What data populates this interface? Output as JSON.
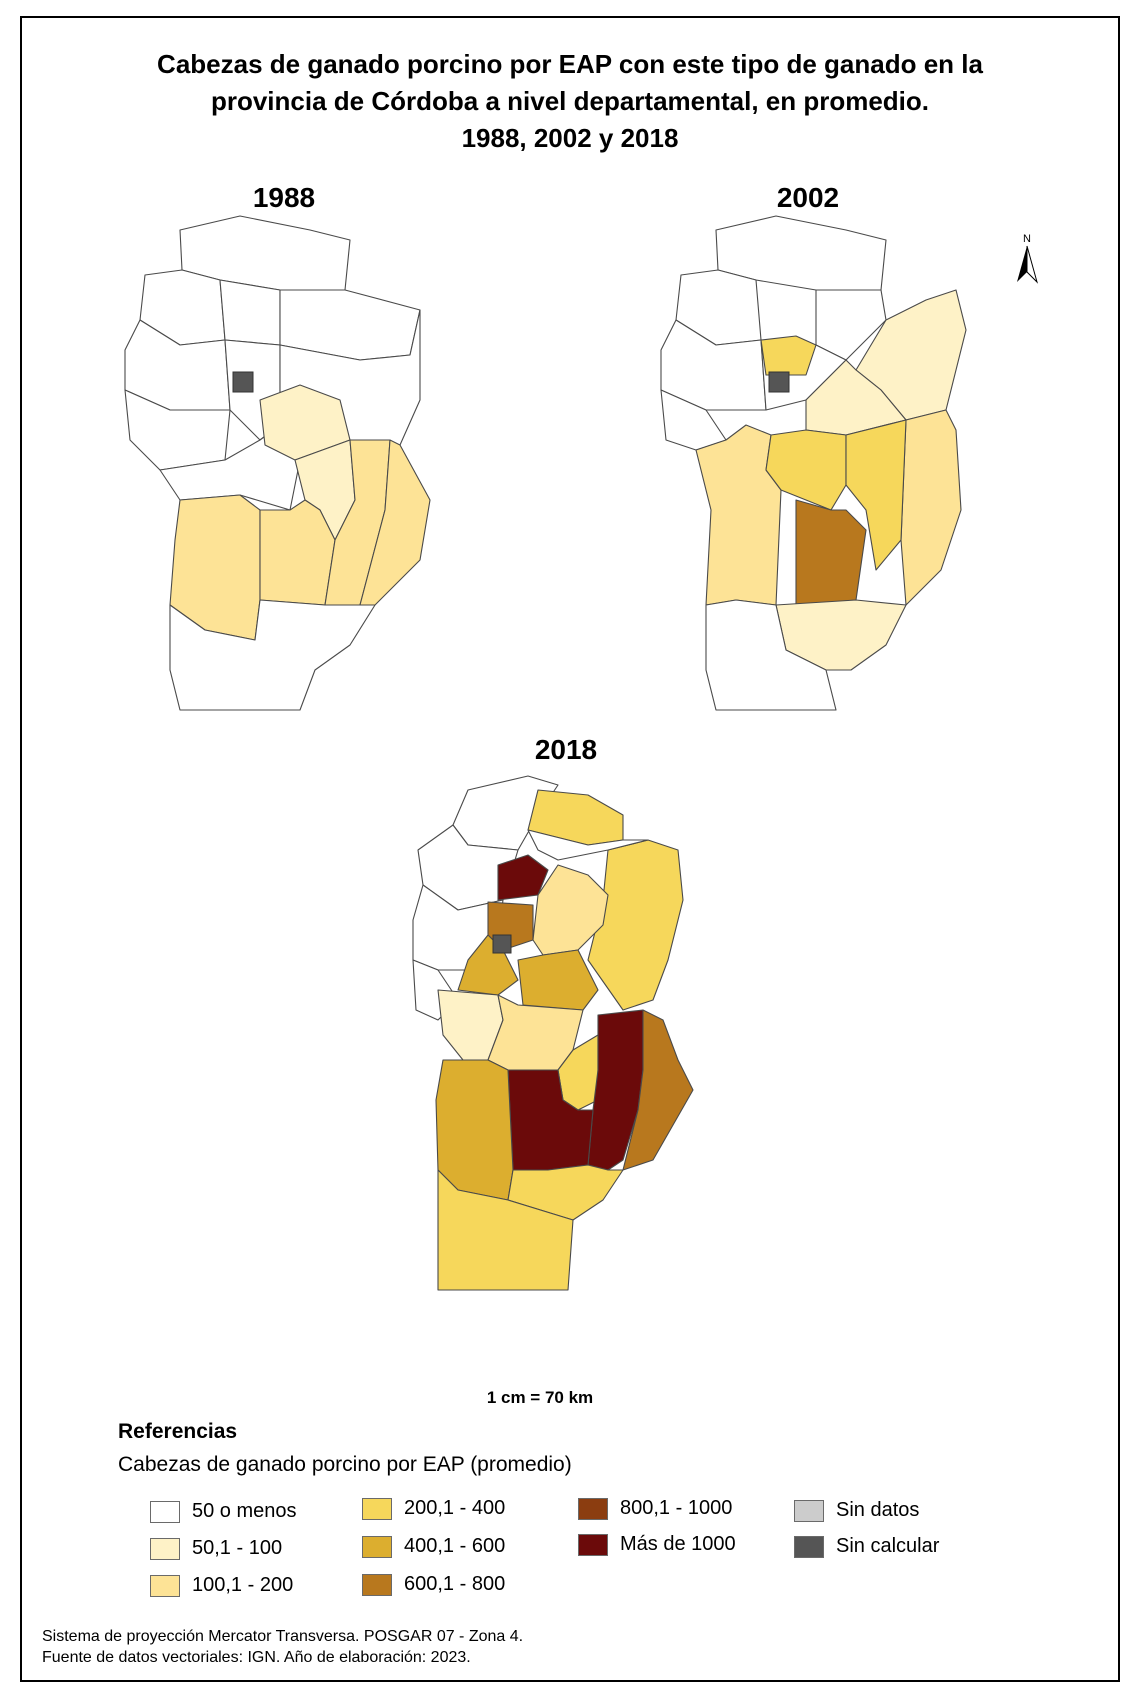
{
  "title": {
    "line1": "Cabezas de ganado porcino por EAP con este tipo de ganado en la",
    "line2": "provincia de Córdoba a nivel departamental, en promedio.",
    "line3": "1988, 2002 y 2018"
  },
  "maps": {
    "m1988": {
      "year": "1988"
    },
    "m2002": {
      "year": "2002"
    },
    "m2018": {
      "year": "2018"
    }
  },
  "north_label": "N",
  "scale": "1 cm = 70 km",
  "legend": {
    "title": "Referencias",
    "subtitle": "Cabezas de ganado porcino por EAP (promedio)",
    "items": [
      {
        "label": "50 o menos",
        "color": "#ffffff"
      },
      {
        "label": "50,1 - 100",
        "color": "#fef2c7"
      },
      {
        "label": "100,1 - 200",
        "color": "#fde396"
      },
      {
        "label": "200,1 - 400",
        "color": "#f6d75b"
      },
      {
        "label": "400,1 - 600",
        "color": "#dcae2f"
      },
      {
        "label": "600,1 - 800",
        "color": "#b8781e"
      },
      {
        "label": "800,1 - 1000",
        "color": "#8b3d10"
      },
      {
        "label": "Más de 1000",
        "color": "#6b0a0a"
      },
      {
        "label": "Sin datos",
        "color": "#cccccc"
      },
      {
        "label": "Sin calcular",
        "color": "#555555"
      }
    ]
  },
  "footer": {
    "line1": "Sistema de proyección Mercator Transversa. POSGAR 07 - Zona 4.",
    "line2": "Fuente de datos vectoriales: IGN. Año de elaboración: 2023."
  }
}
